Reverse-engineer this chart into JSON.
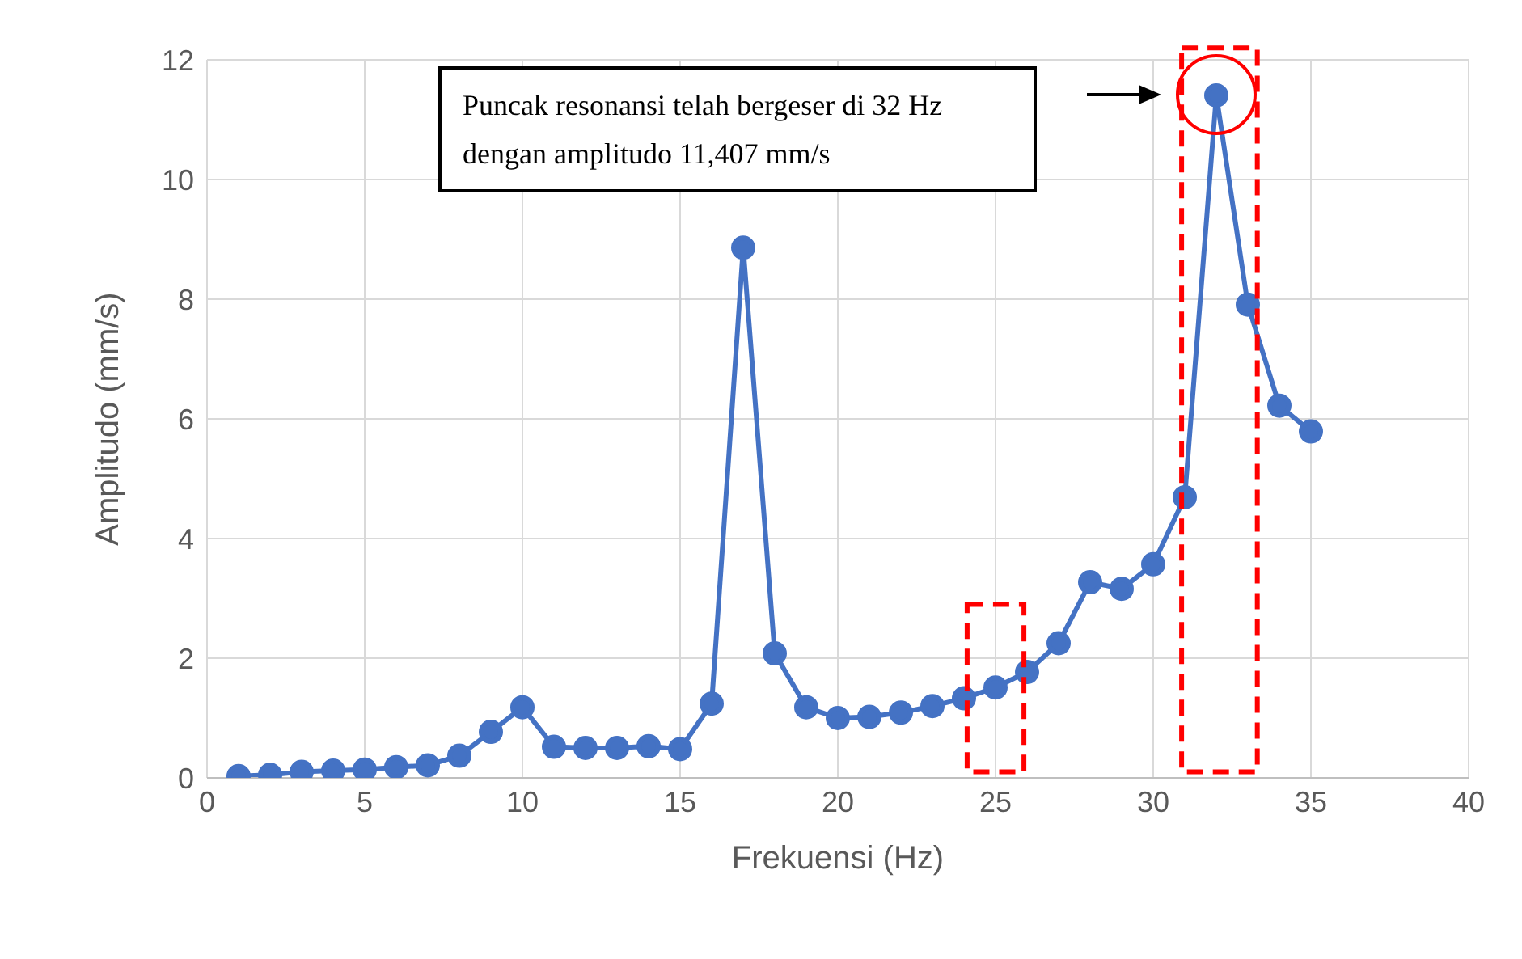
{
  "chart_data": {
    "type": "line",
    "xlabel": "Frekuensi (Hz)",
    "ylabel": "Amplitudo (mm/s)",
    "x": [
      1,
      2,
      3,
      4,
      5,
      6,
      7,
      8,
      9,
      10,
      11,
      12,
      13,
      14,
      15,
      16,
      17,
      18,
      19,
      20,
      21,
      22,
      23,
      24,
      25,
      26,
      27,
      28,
      29,
      30,
      31,
      32,
      33,
      34,
      35
    ],
    "series": [
      {
        "color": "#4472c4",
        "values": [
          0.03,
          0.05,
          0.1,
          0.12,
          0.14,
          0.18,
          0.21,
          0.37,
          0.77,
          1.18,
          0.52,
          0.5,
          0.5,
          0.53,
          0.48,
          1.24,
          8.86,
          2.08,
          1.18,
          1.0,
          1.02,
          1.09,
          1.2,
          1.33,
          1.51,
          1.77,
          2.25,
          3.27,
          3.16,
          3.57,
          4.69,
          11.407,
          7.91,
          6.22,
          5.79
        ]
      }
    ],
    "xlim": [
      0,
      40
    ],
    "xticks": [
      0,
      5,
      10,
      15,
      20,
      25,
      30,
      35,
      40
    ],
    "ylim": [
      0,
      12
    ],
    "yticks": [
      0,
      2,
      4,
      6,
      8,
      10,
      12
    ],
    "grid": true,
    "marker": "circle",
    "line_style": "solid",
    "annotations": [
      "Puncak resonansi telah bergeser di 32 Hz dengan amplitudo 11,407 mm/s"
    ]
  }
}
